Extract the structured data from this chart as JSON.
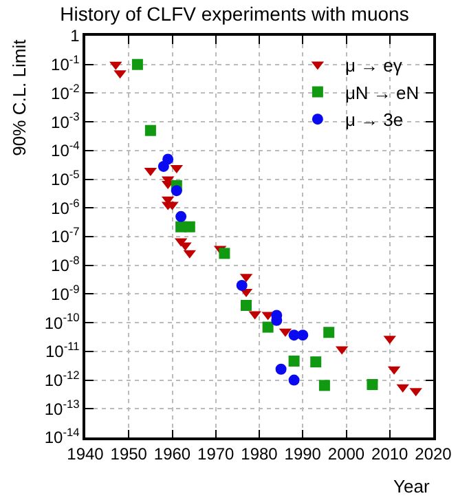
{
  "chart_data": {
    "type": "scatter",
    "title": "History of CLFV experiments with muons",
    "xlabel": "Year",
    "ylabel": "90% C.L. Limit",
    "log": "y",
    "grid": true,
    "legend": "top right",
    "xlim": [
      1940,
      2020
    ],
    "xticks": [
      1940,
      1950,
      1960,
      1970,
      1980,
      1990,
      2000,
      2010,
      2020
    ],
    "ylim": [
      1e-14,
      1
    ],
    "yticks": [
      {
        "value": 1,
        "label": "1"
      },
      {
        "value": 0.1,
        "label": "10$^{-1}$"
      },
      {
        "value": 0.01,
        "label": "10$^{-2}$"
      },
      {
        "value": 0.001,
        "label": "10$^{-3}$"
      },
      {
        "value": 0.0001,
        "label": "10$^{-4}$"
      },
      {
        "value": 1e-05,
        "label": "10$^{-5}$"
      },
      {
        "value": 1e-06,
        "label": "10$^{-6}$"
      },
      {
        "value": 1e-07,
        "label": "10$^{-7}$"
      },
      {
        "value": 1e-08,
        "label": "10$^{-8}$"
      },
      {
        "value": 1e-09,
        "label": "10$^{-9}$"
      },
      {
        "value": 1e-10,
        "label": "10$^{-10}$"
      },
      {
        "value": 1e-11,
        "label": "10$^{-11}$"
      },
      {
        "value": 1e-12,
        "label": "10$^{-12}$"
      },
      {
        "value": 1e-13,
        "label": "10$^{-13}$"
      },
      {
        "value": 1e-14,
        "label": "10$^{-14}$"
      }
    ],
    "series": [
      {
        "name": "μ → eγ",
        "color": "#c00000",
        "marker": "triangle",
        "x": [
          1947,
          1948,
          1955,
          1959,
          1959,
          1959,
          1959,
          1960,
          1961,
          1962,
          1963,
          1964,
          1971,
          1977,
          1977,
          1979,
          1982,
          1986,
          1999,
          2010,
          2011,
          2013,
          2016
        ],
        "values": [
          0.1,
          0.05,
          2e-05,
          1e-05,
          7e-06,
          2e-06,
          1.3e-06,
          1.3e-06,
          2.5e-05,
          7e-08,
          5e-08,
          2.7e-08,
          3.8e-08,
          4e-09,
          1.2e-09,
          2e-10,
          1.9e-10,
          5e-11,
          1.2e-11,
          2.8e-11,
          2.4e-12,
          5.7e-13,
          4.2e-13
        ]
      },
      {
        "name": "μN → eN",
        "color": "#119911",
        "marker": "square",
        "x": [
          1952,
          1955,
          1961,
          1962,
          1964,
          1972,
          1977,
          1982,
          1988,
          1993,
          1995,
          1996,
          2006
        ],
        "values": [
          0.1,
          0.0005,
          6e-06,
          2.2e-07,
          2.2e-07,
          2.6e-08,
          4e-10,
          7e-11,
          4.6e-12,
          4.3e-12,
          6.5e-13,
          4.6e-11,
          7e-13
        ]
      },
      {
        "name": "μ → 3e",
        "color": "#0a0af0",
        "marker": "circle",
        "x": [
          1958,
          1959,
          1961,
          1962,
          1976,
          1984,
          1984,
          1985,
          1988,
          1988,
          1990
        ],
        "values": [
          2.8e-05,
          5e-05,
          4e-06,
          5e-07,
          2e-09,
          1.8e-10,
          1.2e-10,
          2.4e-12,
          3.7e-11,
          1e-12,
          3.7e-11
        ]
      }
    ]
  }
}
